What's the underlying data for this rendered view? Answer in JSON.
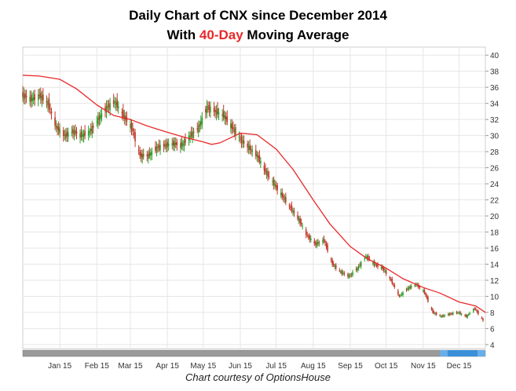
{
  "title": {
    "line1": "Daily Chart of CNX since December 2014",
    "line2_prefix": "With ",
    "line2_highlight": "40-Day",
    "line2_suffix": " Moving Average"
  },
  "credit": "Chart courtesy of OptionsHouse",
  "colors": {
    "up_candle": "#2ca02c",
    "down_candle": "#c0392b",
    "moving_average": "#e8292a",
    "grid": "#e6e6e6",
    "scrollbar_thumb": "#3a8fd8",
    "scrollbar_track": "#9a9a9a"
  },
  "chart_data": {
    "type": "line",
    "title": "Daily Chart of CNX since December 2014 With 40-Day Moving Average",
    "xlabel": "",
    "ylabel": "",
    "ylim": [
      3.5,
      41
    ],
    "y_ticks": [
      4,
      6,
      8,
      10,
      12,
      14,
      16,
      18,
      20,
      22,
      24,
      26,
      28,
      30,
      32,
      34,
      36,
      38,
      40
    ],
    "grid": true,
    "x_tick_labels": [
      "Jan 15",
      "Feb 15",
      "Mar 15",
      "Apr 15",
      "May 15",
      "Jun 15",
      "Jul 15",
      "Aug 15",
      "Sep 15",
      "Oct 15",
      "Nov 15",
      "Dec 15"
    ],
    "x_tick_dates": [
      "2015-01-01",
      "2015-02-01",
      "2015-03-01",
      "2015-04-01",
      "2015-05-01",
      "2015-06-01",
      "2015-07-01",
      "2015-08-01",
      "2015-09-01",
      "2015-10-01",
      "2015-11-01",
      "2015-12-01"
    ],
    "x_range": [
      "2014-12-01",
      "2015-12-23"
    ],
    "series": [
      {
        "kind": "price",
        "x": [
          "2014-12-01",
          "2014-12-08",
          "2014-12-15",
          "2014-12-22",
          "2014-12-29",
          "2015-01-05",
          "2015-01-12",
          "2015-01-19",
          "2015-01-26",
          "2015-02-02",
          "2015-02-09",
          "2015-02-16",
          "2015-02-23",
          "2015-03-02",
          "2015-03-09",
          "2015-03-16",
          "2015-03-23",
          "2015-03-30",
          "2015-04-06",
          "2015-04-13",
          "2015-04-20",
          "2015-04-27",
          "2015-05-04",
          "2015-05-11",
          "2015-05-18",
          "2015-05-25",
          "2015-06-01",
          "2015-06-08",
          "2015-06-15",
          "2015-06-22",
          "2015-06-29",
          "2015-07-06",
          "2015-07-13",
          "2015-07-20",
          "2015-07-27",
          "2015-08-03",
          "2015-08-10",
          "2015-08-17",
          "2015-08-24",
          "2015-08-31",
          "2015-09-07",
          "2015-09-14",
          "2015-09-21",
          "2015-09-28",
          "2015-10-05",
          "2015-10-12",
          "2015-10-19",
          "2015-10-26",
          "2015-11-02",
          "2015-11-09",
          "2015-11-16",
          "2015-11-23",
          "2015-11-30",
          "2015-12-07",
          "2015-12-14",
          "2015-12-21"
        ],
        "y": [
          35.0,
          34.5,
          35.0,
          34.0,
          31.0,
          30.0,
          30.5,
          30.0,
          30.5,
          32.0,
          33.5,
          34.2,
          32.5,
          31.0,
          27.5,
          27.5,
          28.5,
          28.8,
          29.0,
          28.8,
          30.0,
          31.0,
          33.5,
          33.0,
          32.5,
          31.0,
          29.5,
          28.5,
          27.5,
          25.5,
          24.0,
          22.5,
          21.0,
          19.5,
          17.5,
          16.5,
          17.0,
          14.0,
          13.0,
          12.5,
          13.5,
          15.0,
          14.0,
          13.5,
          12.0,
          10.0,
          11.0,
          11.5,
          10.5,
          8.0,
          7.5,
          7.8,
          8.0,
          7.5,
          8.5,
          7.0
        ]
      },
      {
        "name": "40-Day",
        "kind": "moving_average",
        "x": [
          "2014-12-01",
          "2014-12-15",
          "2015-01-01",
          "2015-01-15",
          "2015-02-01",
          "2015-02-15",
          "2015-03-01",
          "2015-03-15",
          "2015-04-01",
          "2015-04-15",
          "2015-05-01",
          "2015-05-08",
          "2015-05-15",
          "2015-06-01",
          "2015-06-15",
          "2015-07-01",
          "2015-07-15",
          "2015-08-01",
          "2015-08-15",
          "2015-09-01",
          "2015-09-15",
          "2015-10-01",
          "2015-10-15",
          "2015-11-01",
          "2015-11-15",
          "2015-12-01",
          "2015-12-15",
          "2015-12-23"
        ],
        "y": [
          37.5,
          37.4,
          37.0,
          35.8,
          33.8,
          32.5,
          32.0,
          31.2,
          30.4,
          29.8,
          29.2,
          28.9,
          29.1,
          30.3,
          30.1,
          28.3,
          25.8,
          22.0,
          19.0,
          16.2,
          14.7,
          13.5,
          12.2,
          11.1,
          10.4,
          9.3,
          8.8,
          8.0
        ]
      }
    ]
  }
}
